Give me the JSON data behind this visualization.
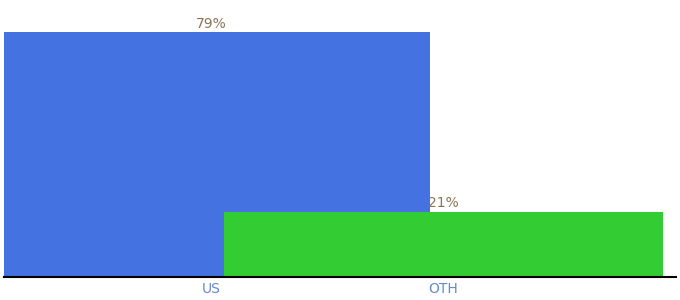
{
  "categories": [
    "US",
    "OTH"
  ],
  "values": [
    79,
    21
  ],
  "bar_colors": [
    "#4472e0",
    "#33cc33"
  ],
  "label_texts": [
    "79%",
    "21%"
  ],
  "label_color": "#8b7355",
  "ylim": [
    0,
    88
  ],
  "background_color": "#ffffff",
  "bar_width": 0.85,
  "label_fontsize": 10,
  "tick_fontsize": 10,
  "tick_color": "#6688cc",
  "x_positions": [
    0.3,
    0.75
  ]
}
